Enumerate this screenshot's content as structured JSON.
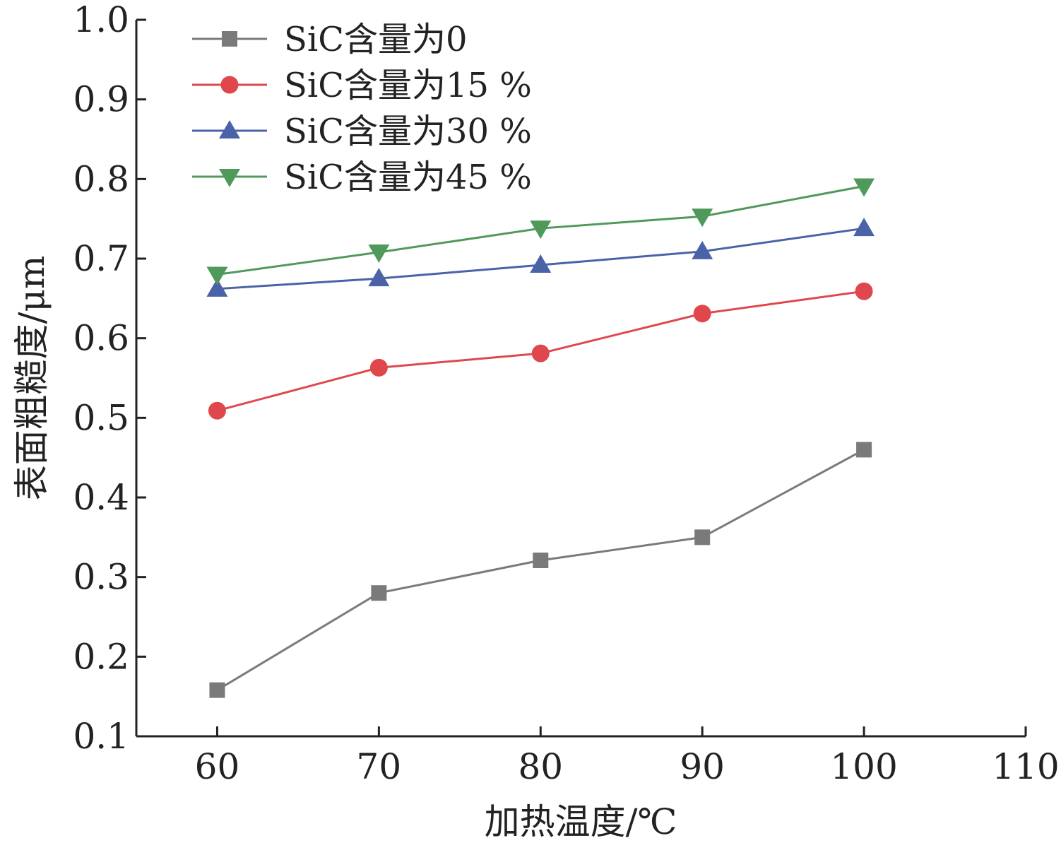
{
  "chart_data": {
    "type": "line",
    "xlabel": "加热温度/℃",
    "ylabel": "表面粗糙度/μm",
    "xlim": [
      55,
      110
    ],
    "ylim": [
      0.1,
      1.0
    ],
    "xticks": [
      60,
      70,
      80,
      90,
      100,
      110
    ],
    "xtick_labels": [
      "60",
      "70",
      "80",
      "90",
      "100",
      "110"
    ],
    "yticks": [
      0.1,
      0.2,
      0.3,
      0.4,
      0.5,
      0.6,
      0.7,
      0.8,
      0.9,
      1.0
    ],
    "ytick_labels": [
      "0.1",
      "0.2",
      "0.3",
      "0.4",
      "0.5",
      "0.6",
      "0.7",
      "0.8",
      "0.9",
      "1.0"
    ],
    "grid": false,
    "legend_position": "top-left",
    "x": [
      60,
      70,
      80,
      90,
      100
    ],
    "series": [
      {
        "name": "SiC含量为0",
        "marker": "square",
        "color": "#7a7a7a",
        "values": [
          0.158,
          0.28,
          0.321,
          0.35,
          0.46
        ]
      },
      {
        "name": "SiC含量为15 %",
        "marker": "circle",
        "color": "#e0474c",
        "values": [
          0.509,
          0.563,
          0.581,
          0.631,
          0.659
        ]
      },
      {
        "name": "SiC含量为30 %",
        "marker": "triangle-up",
        "color": "#4a62a8",
        "values": [
          0.662,
          0.675,
          0.692,
          0.709,
          0.738
        ]
      },
      {
        "name": "SiC含量为45 %",
        "marker": "triangle-down",
        "color": "#4f9a5a",
        "values": [
          0.68,
          0.708,
          0.738,
          0.753,
          0.791
        ]
      }
    ]
  }
}
